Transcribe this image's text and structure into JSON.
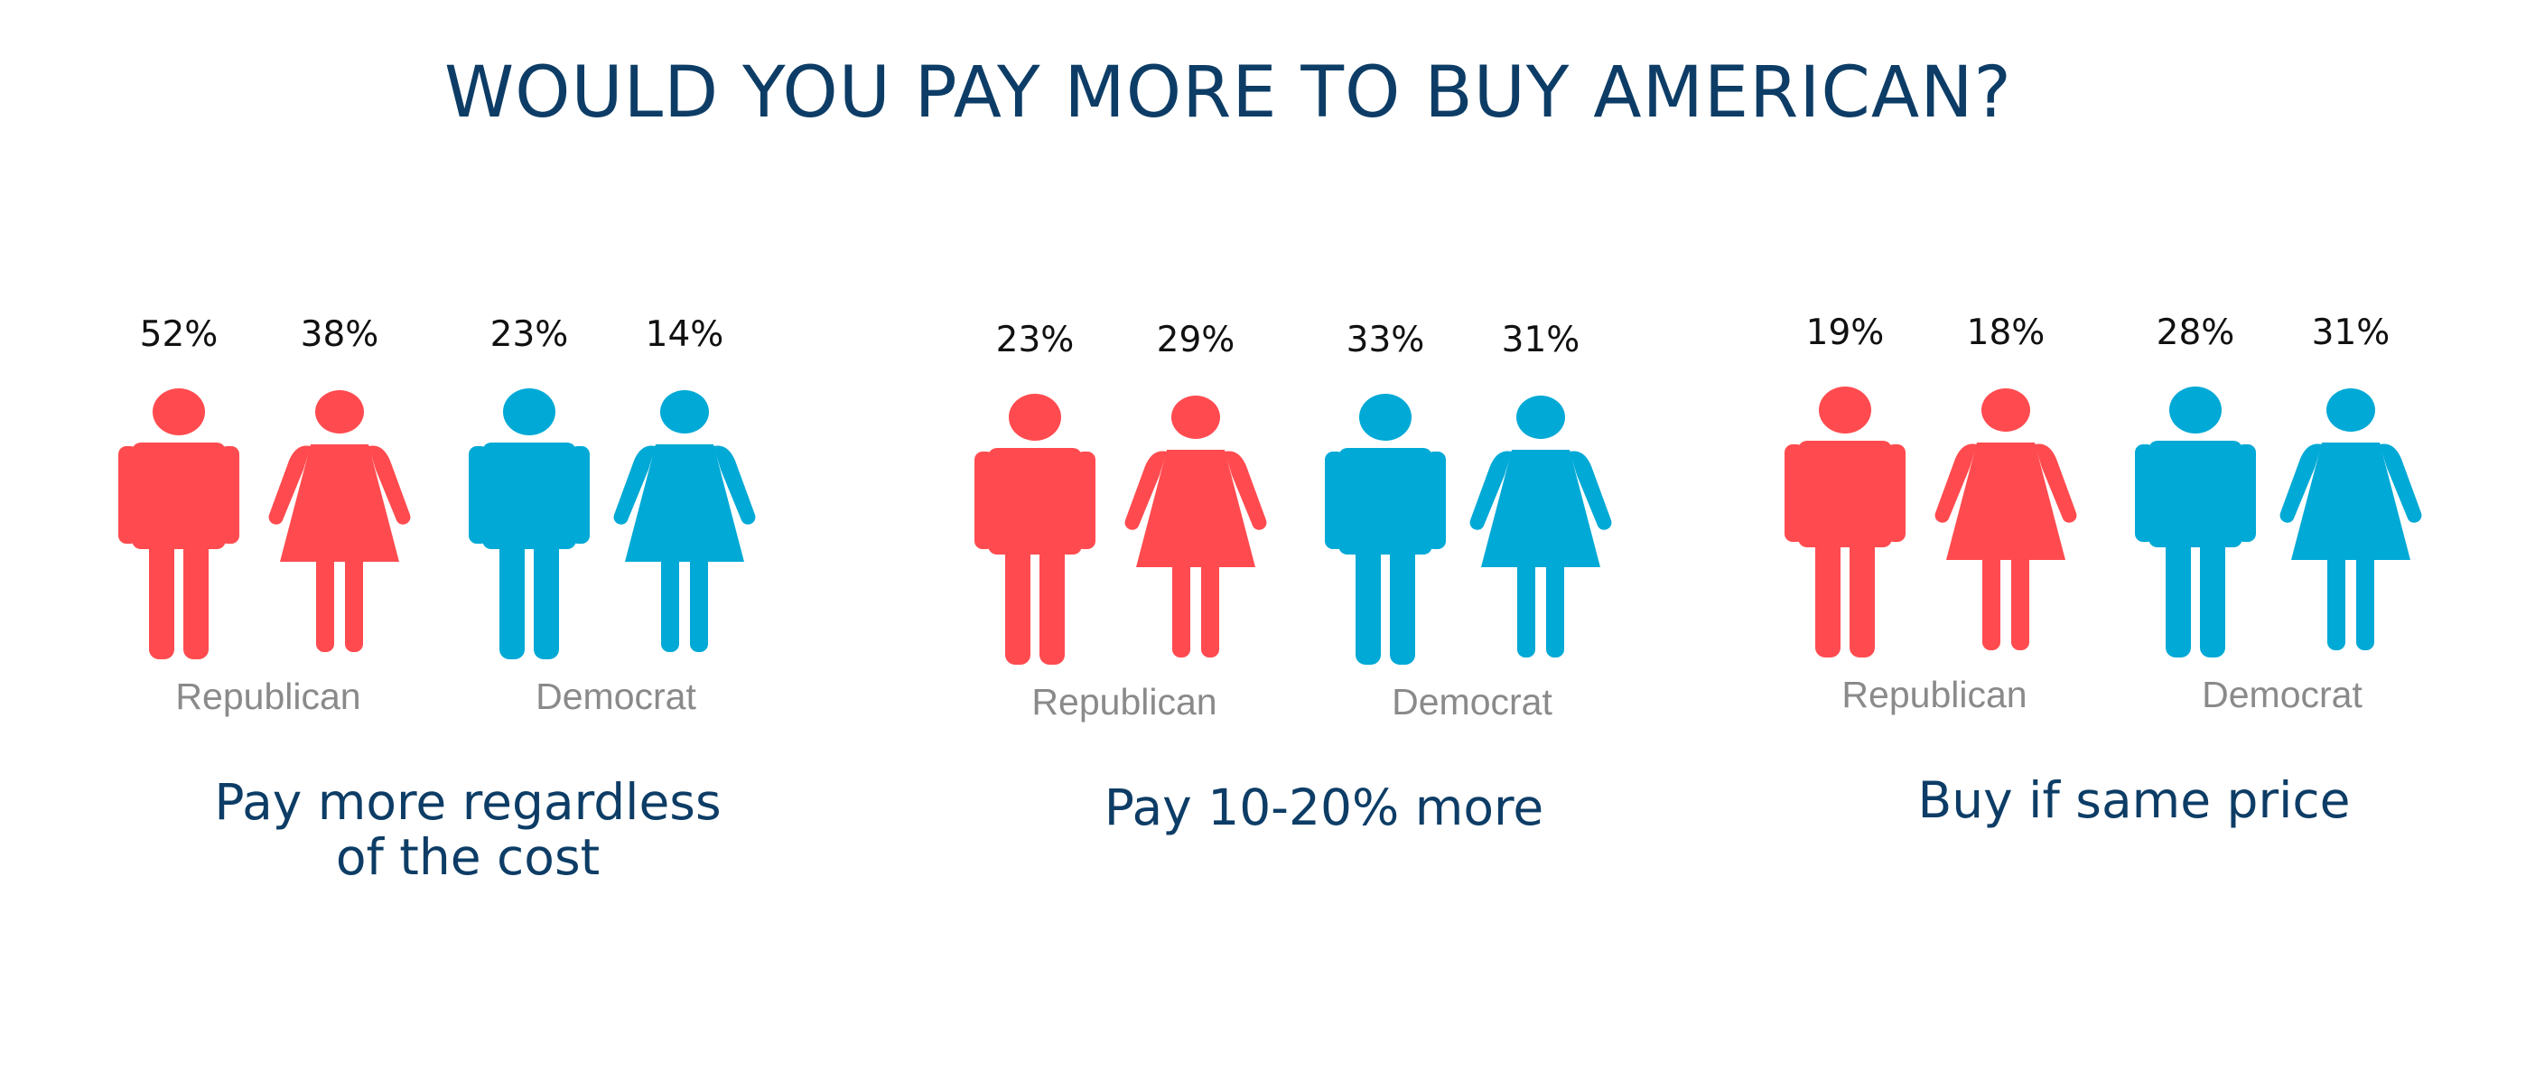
{
  "title": "WOULD YOU PAY MORE TO BUY AMERICAN?",
  "colors": {
    "title": "#0d3d66",
    "republican": "#ff4b4f",
    "democrat": "#00a9d6",
    "party_label": "#8a8a8a",
    "value_label": "#111111"
  },
  "chart_data": {
    "type": "pictogram",
    "title": "WOULD YOU PAY MORE TO BUY AMERICAN?",
    "groups": [
      {
        "caption": [
          "Pay more regardless",
          "of the cost"
        ],
        "parties": [
          {
            "name": "Republican",
            "values": [
              {
                "figure": "man-icon",
                "value": 52,
                "label": "52%"
              },
              {
                "figure": "woman-icon",
                "value": 38,
                "label": "38%"
              }
            ]
          },
          {
            "name": "Democrat",
            "values": [
              {
                "figure": "man-icon",
                "value": 23,
                "label": "23%"
              },
              {
                "figure": "woman-icon",
                "value": 14,
                "label": "14%"
              }
            ]
          }
        ]
      },
      {
        "caption": [
          "Pay 10-20% more"
        ],
        "parties": [
          {
            "name": "Republican",
            "values": [
              {
                "figure": "man-icon",
                "value": 23,
                "label": "23%"
              },
              {
                "figure": "woman-icon",
                "value": 29,
                "label": "29%"
              }
            ]
          },
          {
            "name": "Democrat",
            "values": [
              {
                "figure": "man-icon",
                "value": 33,
                "label": "33%"
              },
              {
                "figure": "woman-icon",
                "value": 31,
                "label": "31%"
              }
            ]
          }
        ]
      },
      {
        "caption": [
          "Buy if same price"
        ],
        "parties": [
          {
            "name": "Republican",
            "values": [
              {
                "figure": "man-icon",
                "value": 19,
                "label": "19%"
              },
              {
                "figure": "woman-icon",
                "value": 18,
                "label": "18%"
              }
            ]
          },
          {
            "name": "Democrat",
            "values": [
              {
                "figure": "man-icon",
                "value": 28,
                "label": "28%"
              },
              {
                "figure": "woman-icon",
                "value": 31,
                "label": "31%"
              }
            ]
          }
        ]
      }
    ]
  }
}
